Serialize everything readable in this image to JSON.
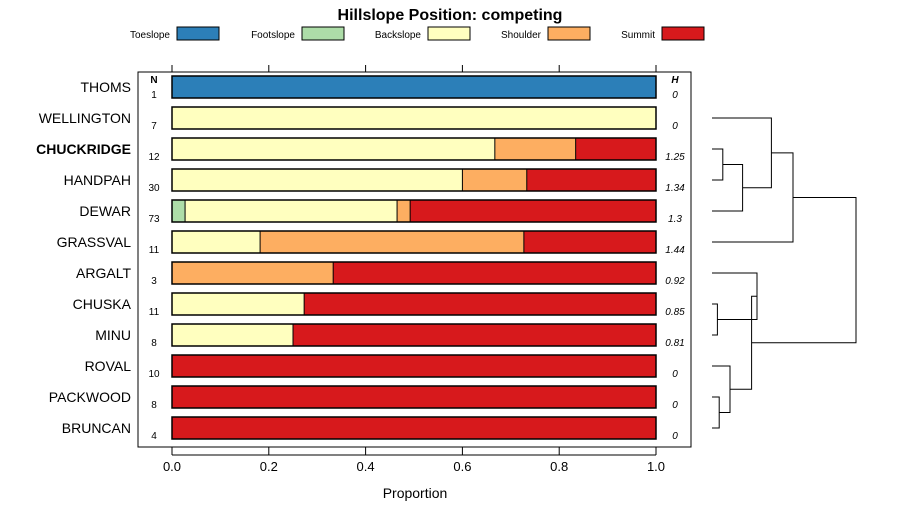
{
  "chart_data": {
    "type": "bar",
    "orientation": "horizontal-stacked",
    "title": "Hillslope Position: competing",
    "xlabel": "Proportion",
    "ylabel": "",
    "xlim": [
      0,
      1
    ],
    "xticks": [
      "0.0",
      "0.2",
      "0.4",
      "0.6",
      "0.8",
      "1.0"
    ],
    "legend_position": "top",
    "column_headers": {
      "n": "N",
      "h": "H"
    },
    "highlight_row": "CHUCKRIDGE",
    "series": [
      {
        "name": "Toeslope",
        "color": "#2c7fb8"
      },
      {
        "name": "Footslope",
        "color": "#addda8"
      },
      {
        "name": "Backslope",
        "color": "#ffffbf"
      },
      {
        "name": "Shoulder",
        "color": "#fdae61"
      },
      {
        "name": "Summit",
        "color": "#d7191c"
      }
    ],
    "categories": [
      "THOMS",
      "WELLINGTON",
      "CHUCKRIDGE",
      "HANDPAH",
      "DEWAR",
      "GRASSVAL",
      "ARGALT",
      "CHUSKA",
      "MINU",
      "ROVAL",
      "PACKWOOD",
      "BRUNCAN"
    ],
    "rows": [
      {
        "label": "THOMS",
        "n": "1",
        "h": "0",
        "values": [
          1,
          0,
          0,
          0,
          0
        ]
      },
      {
        "label": "WELLINGTON",
        "n": "7",
        "h": "0",
        "values": [
          0,
          0,
          1,
          0,
          0
        ]
      },
      {
        "label": "CHUCKRIDGE",
        "n": "12",
        "h": "1.25",
        "values": [
          0,
          0,
          0.667,
          0.167,
          0.166
        ]
      },
      {
        "label": "HANDPAH",
        "n": "30",
        "h": "1.34",
        "values": [
          0,
          0,
          0.6,
          0.133,
          0.267
        ]
      },
      {
        "label": "DEWAR",
        "n": "73",
        "h": "1.3",
        "values": [
          0,
          0.027,
          0.438,
          0.027,
          0.508
        ]
      },
      {
        "label": "GRASSVAL",
        "n": "11",
        "h": "1.44",
        "values": [
          0,
          0,
          0.182,
          0.545,
          0.273
        ]
      },
      {
        "label": "ARGALT",
        "n": "3",
        "h": "0.92",
        "values": [
          0,
          0,
          0,
          0.333,
          0.667
        ]
      },
      {
        "label": "CHUSKA",
        "n": "11",
        "h": "0.85",
        "values": [
          0,
          0,
          0.273,
          0,
          0.727
        ]
      },
      {
        "label": "MINU",
        "n": "8",
        "h": "0.81",
        "values": [
          0,
          0,
          0.25,
          0,
          0.75
        ]
      },
      {
        "label": "ROVAL",
        "n": "10",
        "h": "0",
        "values": [
          0,
          0,
          0,
          0,
          1
        ]
      },
      {
        "label": "PACKWOOD",
        "n": "8",
        "h": "0",
        "values": [
          0,
          0,
          0,
          0,
          1
        ]
      },
      {
        "label": "BRUNCAN",
        "n": "4",
        "h": "0",
        "values": [
          0,
          0,
          0,
          0,
          1
        ]
      }
    ],
    "dendrogram": {
      "description": "hierarchical clustering of rows",
      "merges": [
        [
          2,
          3,
          0.06
        ],
        [
          -1,
          4,
          0.17
        ],
        [
          -2,
          1,
          0.33
        ],
        [
          -3,
          5,
          0.45
        ],
        [
          10,
          11,
          0.04
        ],
        [
          9,
          -5,
          0.1
        ],
        [
          7,
          8,
          0.03
        ],
        [
          6,
          -7,
          0.25
        ],
        [
          -6,
          -8,
          0.22
        ],
        [
          -4,
          -9,
          0.8
        ]
      ]
    }
  }
}
